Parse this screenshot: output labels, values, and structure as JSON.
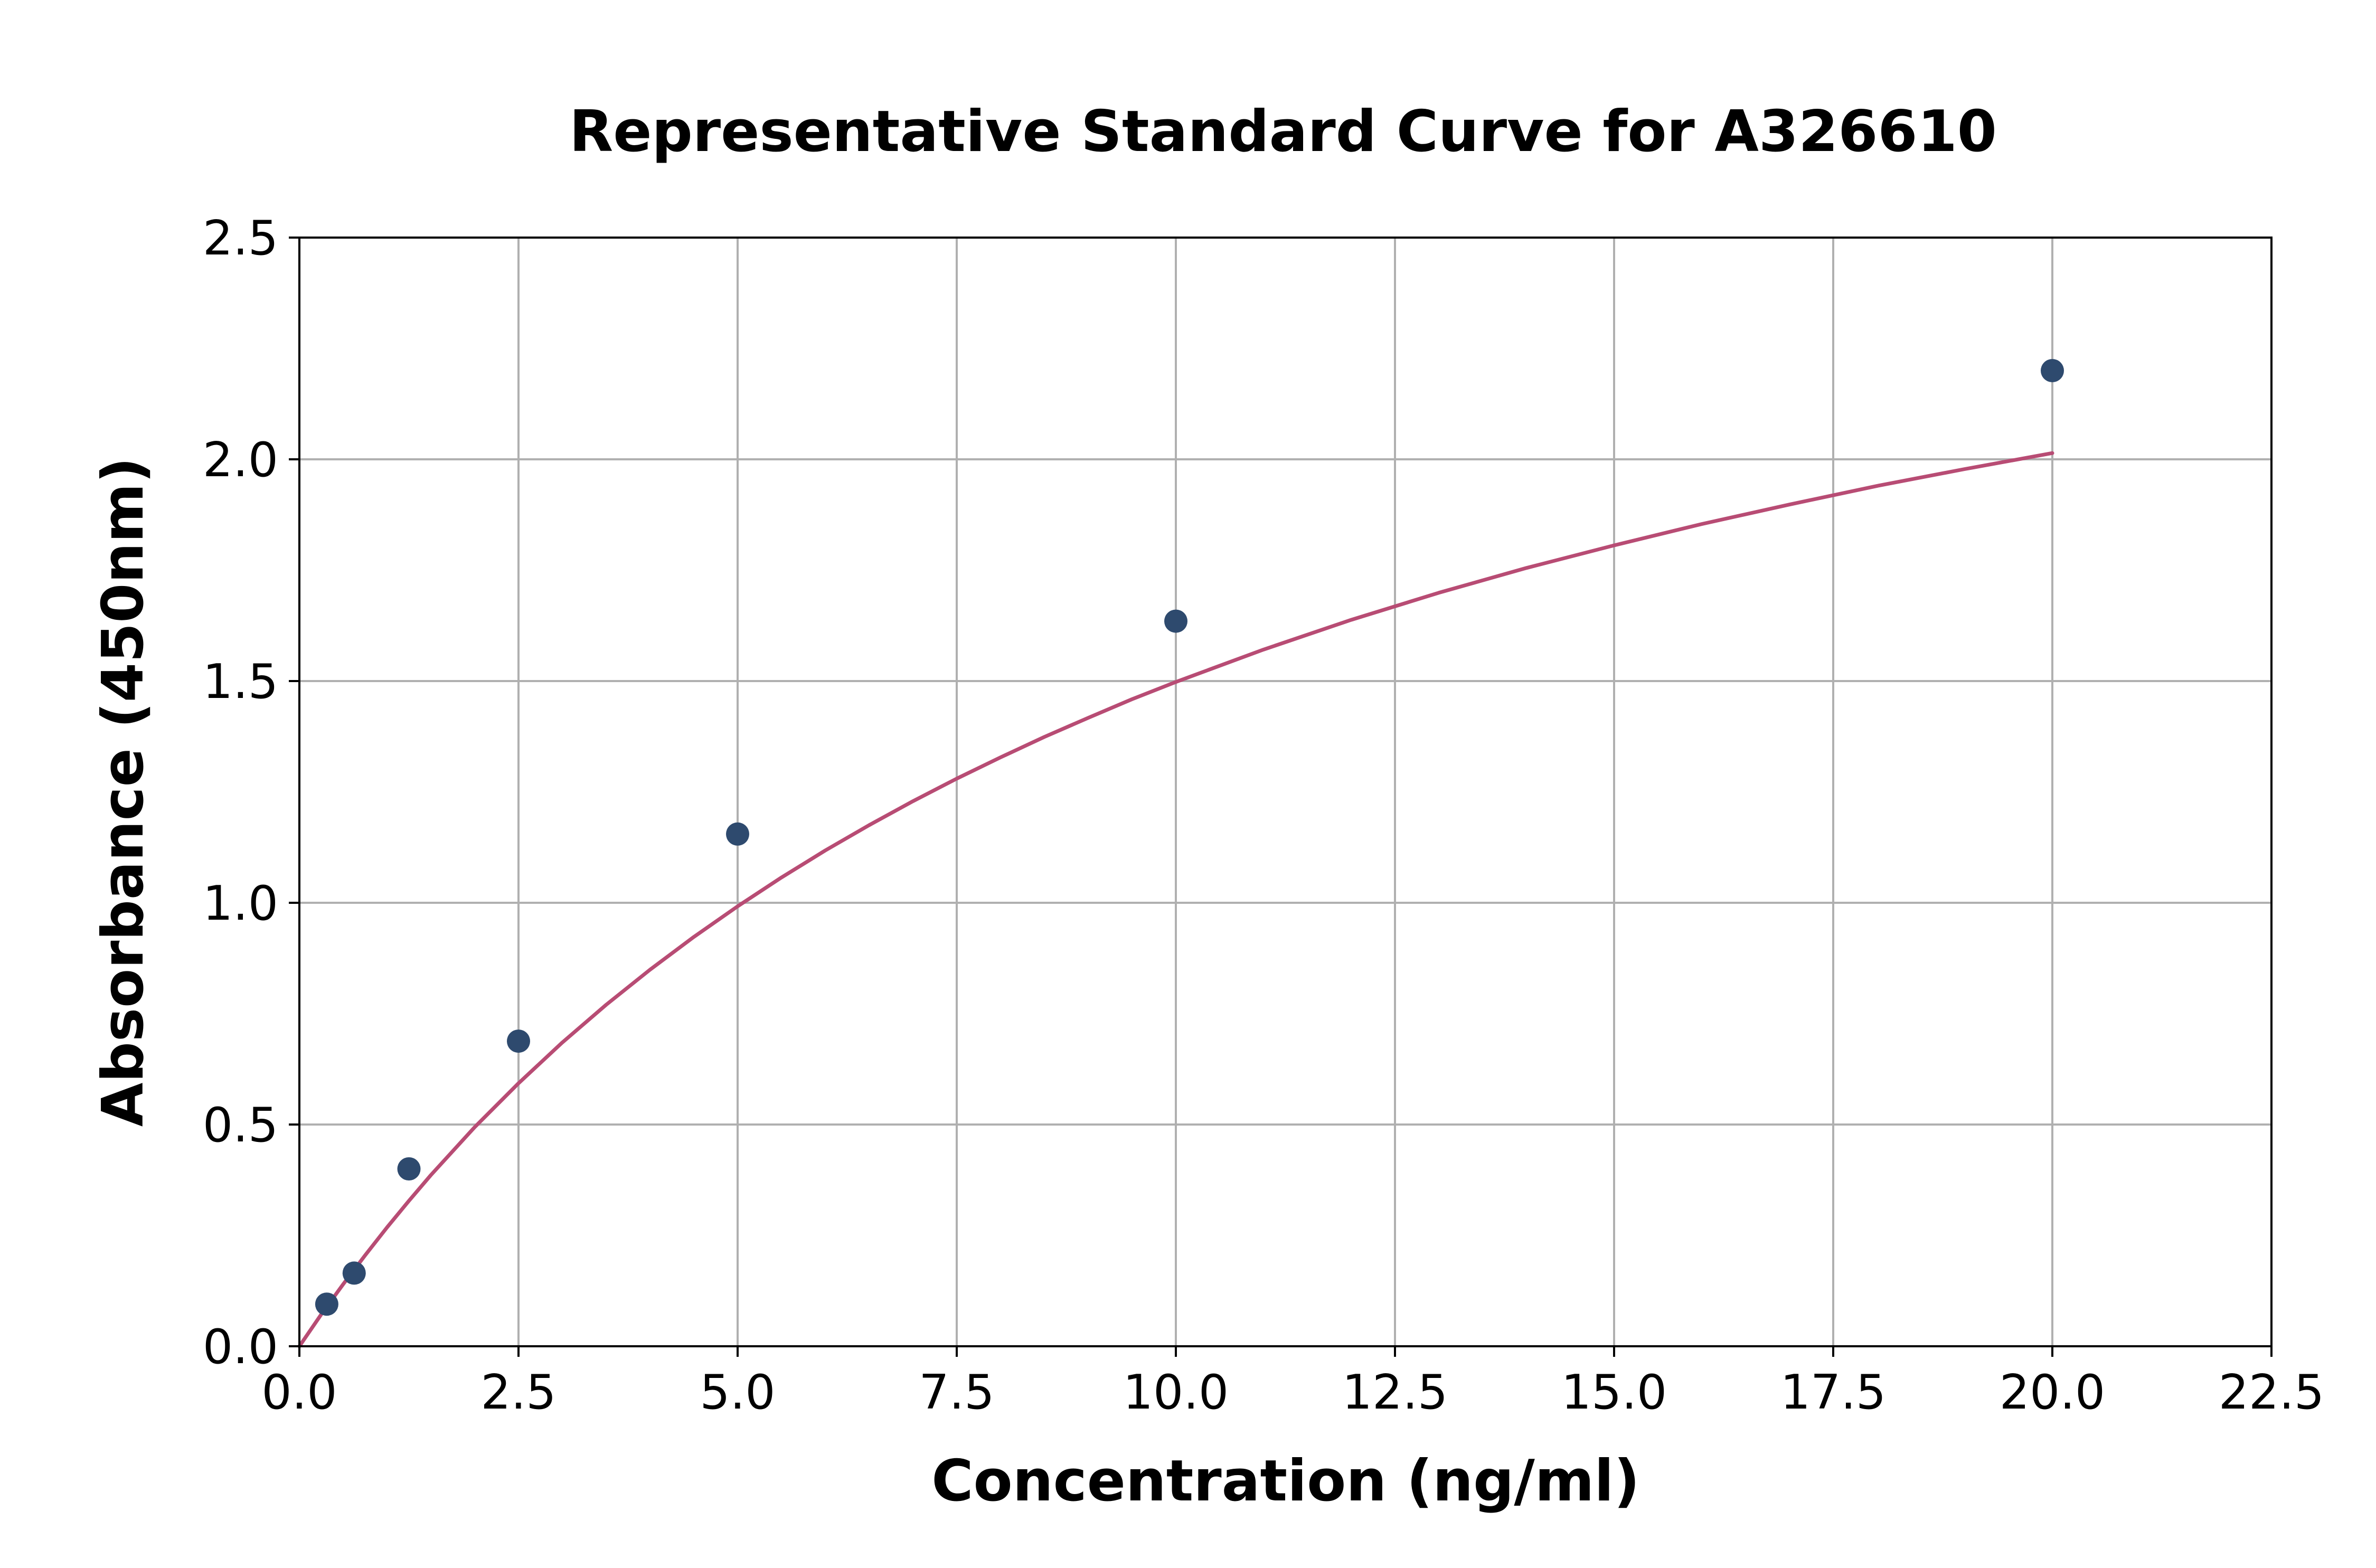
{
  "chart_data": {
    "type": "scatter",
    "title": "Representative Standard Curve for A326610",
    "xlabel": "Concentration (ng/ml)",
    "ylabel": "Absorbance (450nm)",
    "xlim": [
      0,
      22.5
    ],
    "ylim": [
      0,
      2.5
    ],
    "x_ticks": [
      "0.0",
      "2.5",
      "5.0",
      "7.5",
      "10.0",
      "12.5",
      "15.0",
      "17.5",
      "20.0",
      "22.5"
    ],
    "y_ticks": [
      "0.0",
      "0.5",
      "1.0",
      "1.5",
      "2.0",
      "2.5"
    ],
    "grid": true,
    "series": [
      {
        "x": [
          0.3125,
          0.625,
          1.25,
          2.5,
          5.0,
          10.0,
          20.0
        ],
        "y": [
          0.095,
          0.165,
          0.4,
          0.688,
          1.155,
          1.635,
          2.2
        ],
        "color": "#2e4a6e"
      }
    ],
    "fit_curve": {
      "x_range": [
        0,
        20
      ],
      "color": "#b84c74",
      "points": [
        [
          0,
          0
        ],
        [
          0.25,
          0.072
        ],
        [
          0.5,
          0.14
        ],
        [
          0.75,
          0.205
        ],
        [
          1.0,
          0.268
        ],
        [
          1.25,
          0.328
        ],
        [
          1.5,
          0.386
        ],
        [
          2.0,
          0.494
        ],
        [
          2.5,
          0.593
        ],
        [
          3.0,
          0.685
        ],
        [
          3.5,
          0.77
        ],
        [
          4.0,
          0.849
        ],
        [
          4.5,
          0.923
        ],
        [
          5.0,
          0.992
        ],
        [
          5.5,
          1.057
        ],
        [
          6.0,
          1.118
        ],
        [
          6.5,
          1.175
        ],
        [
          7.0,
          1.229
        ],
        [
          7.5,
          1.28
        ],
        [
          8.0,
          1.328
        ],
        [
          8.5,
          1.374
        ],
        [
          9.0,
          1.417
        ],
        [
          9.5,
          1.459
        ],
        [
          10.0,
          1.498
        ],
        [
          11.0,
          1.571
        ],
        [
          12.0,
          1.638
        ],
        [
          13.0,
          1.699
        ],
        [
          14.0,
          1.755
        ],
        [
          15.0,
          1.806
        ],
        [
          16.0,
          1.854
        ],
        [
          17.0,
          1.898
        ],
        [
          18.0,
          1.94
        ],
        [
          19.0,
          1.978
        ],
        [
          20.0,
          2.014
        ]
      ]
    }
  }
}
